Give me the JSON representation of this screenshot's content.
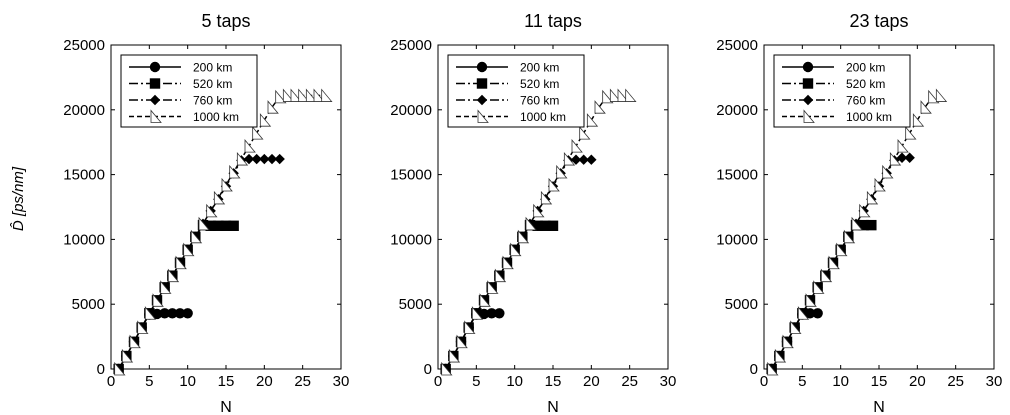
{
  "chart_data": [
    {
      "type": "scatter",
      "title": "5 taps",
      "xlabel": "N",
      "ylabel": "D̂ [ps/nm]",
      "xlim": [
        0,
        30
      ],
      "ylim": [
        0,
        25000
      ],
      "xticks": [
        "0",
        "5",
        "10",
        "15",
        "20",
        "25",
        "30"
      ],
      "yticks": [
        "0",
        "5000",
        "10000",
        "15000",
        "20000",
        "25000"
      ],
      "grid": false,
      "legend_position": "top-left",
      "series": [
        {
          "name": "200 km",
          "marker": "circle",
          "line": "solid",
          "x": [
            1,
            2,
            3,
            4,
            5,
            6,
            7,
            8,
            9,
            10
          ],
          "y": [
            0,
            1000,
            2100,
            3200,
            4200,
            4250,
            4300,
            4300,
            4300,
            4300
          ]
        },
        {
          "name": "520 km",
          "marker": "square",
          "line": "dashdot",
          "x": [
            1,
            2,
            3,
            4,
            5,
            6,
            7,
            8,
            9,
            10,
            11,
            12,
            13,
            14,
            15,
            16
          ],
          "y": [
            0,
            1000,
            2100,
            3200,
            4300,
            5300,
            6300,
            7200,
            8200,
            9200,
            10200,
            11100,
            11050,
            11050,
            11050,
            11050
          ]
        },
        {
          "name": "760 km",
          "marker": "diamond",
          "line": "dashdot",
          "x": [
            1,
            2,
            3,
            4,
            5,
            6,
            7,
            8,
            9,
            10,
            11,
            12,
            13,
            14,
            15,
            16,
            17,
            18,
            19,
            20,
            21,
            22
          ],
          "y": [
            0,
            1000,
            2100,
            3200,
            4300,
            5300,
            6300,
            7200,
            8200,
            9200,
            10200,
            11200,
            12200,
            13100,
            14100,
            15100,
            16100,
            16200,
            16200,
            16200,
            16200,
            16200
          ]
        },
        {
          "name": "1000 km",
          "marker": "triangle",
          "line": "dashed",
          "x": [
            1,
            2,
            3,
            4,
            5,
            6,
            7,
            8,
            9,
            10,
            11,
            12,
            13,
            14,
            15,
            16,
            17,
            18,
            19,
            20,
            21,
            22,
            23,
            24,
            25,
            26,
            27,
            28
          ],
          "y": [
            0,
            1000,
            2100,
            3200,
            4300,
            5300,
            6300,
            7200,
            8200,
            9200,
            10200,
            11200,
            12200,
            13200,
            14200,
            15200,
            16200,
            17200,
            18200,
            19200,
            20200,
            21000,
            21100,
            21100,
            21100,
            21100,
            21100,
            21100
          ]
        }
      ]
    },
    {
      "type": "scatter",
      "title": "11 taps",
      "xlabel": "N",
      "ylabel": "",
      "xlim": [
        0,
        30
      ],
      "ylim": [
        0,
        25000
      ],
      "xticks": [
        "0",
        "5",
        "10",
        "15",
        "20",
        "25",
        "30"
      ],
      "yticks": [
        "0",
        "5000",
        "10000",
        "15000",
        "20000",
        "25000"
      ],
      "grid": false,
      "legend_position": "top-left",
      "series": [
        {
          "name": "200 km",
          "marker": "circle",
          "line": "solid",
          "x": [
            1,
            2,
            3,
            4,
            5,
            6,
            7,
            8
          ],
          "y": [
            0,
            1000,
            2100,
            3200,
            4200,
            4250,
            4300,
            4300
          ]
        },
        {
          "name": "520 km",
          "marker": "square",
          "line": "dashdot",
          "x": [
            1,
            2,
            3,
            4,
            5,
            6,
            7,
            8,
            9,
            10,
            11,
            12,
            13,
            14,
            15
          ],
          "y": [
            0,
            1000,
            2100,
            3200,
            4300,
            5300,
            6300,
            7200,
            8200,
            9200,
            10200,
            11100,
            11050,
            11050,
            11050
          ]
        },
        {
          "name": "760 km",
          "marker": "diamond",
          "line": "dashdot",
          "x": [
            1,
            2,
            3,
            4,
            5,
            6,
            7,
            8,
            9,
            10,
            11,
            12,
            13,
            14,
            15,
            16,
            17,
            18,
            19,
            20
          ],
          "y": [
            0,
            1000,
            2100,
            3200,
            4300,
            5300,
            6300,
            7200,
            8200,
            9200,
            10200,
            11200,
            12200,
            13100,
            14100,
            15100,
            16100,
            16150,
            16150,
            16150
          ]
        },
        {
          "name": "1000 km",
          "marker": "triangle",
          "line": "dashed",
          "x": [
            1,
            2,
            3,
            4,
            5,
            6,
            7,
            8,
            9,
            10,
            11,
            12,
            13,
            14,
            15,
            16,
            17,
            18,
            19,
            20,
            21,
            22,
            23,
            24,
            25
          ],
          "y": [
            0,
            1000,
            2100,
            3200,
            4300,
            5300,
            6300,
            7200,
            8200,
            9200,
            10200,
            11200,
            12200,
            13200,
            14200,
            15200,
            16200,
            17200,
            18200,
            19200,
            20200,
            21000,
            21100,
            21100,
            21100
          ]
        }
      ]
    },
    {
      "type": "scatter",
      "title": "23 taps",
      "xlabel": "N",
      "ylabel": "",
      "xlim": [
        0,
        30
      ],
      "ylim": [
        0,
        25000
      ],
      "xticks": [
        "0",
        "5",
        "10",
        "15",
        "20",
        "25",
        "30"
      ],
      "yticks": [
        "0",
        "5000",
        "10000",
        "15000",
        "20000",
        "25000"
      ],
      "grid": false,
      "legend_position": "top-left",
      "series": [
        {
          "name": "200 km",
          "marker": "circle",
          "line": "solid",
          "x": [
            1,
            2,
            3,
            4,
            5,
            6,
            7
          ],
          "y": [
            0,
            1000,
            2100,
            3200,
            4200,
            4300,
            4300
          ]
        },
        {
          "name": "520 km",
          "marker": "square",
          "line": "dashdot",
          "x": [
            1,
            2,
            3,
            4,
            5,
            6,
            7,
            8,
            9,
            10,
            11,
            12,
            13,
            14
          ],
          "y": [
            0,
            1000,
            2100,
            3200,
            4300,
            5300,
            6300,
            7200,
            8200,
            9200,
            10200,
            11100,
            11100,
            11100
          ]
        },
        {
          "name": "760 km",
          "marker": "diamond",
          "line": "dashdot",
          "x": [
            1,
            2,
            3,
            4,
            5,
            6,
            7,
            8,
            9,
            10,
            11,
            12,
            13,
            14,
            15,
            16,
            17,
            18,
            19
          ],
          "y": [
            0,
            1000,
            2100,
            3200,
            4300,
            5300,
            6300,
            7200,
            8200,
            9200,
            10200,
            11200,
            12200,
            13100,
            14100,
            15100,
            16100,
            16300,
            16300
          ]
        },
        {
          "name": "1000 km",
          "marker": "triangle",
          "line": "dashed",
          "x": [
            1,
            2,
            3,
            4,
            5,
            6,
            7,
            8,
            9,
            10,
            11,
            12,
            13,
            14,
            15,
            16,
            17,
            18,
            19,
            20,
            21,
            22,
            23
          ],
          "y": [
            0,
            1000,
            2100,
            3200,
            4300,
            5300,
            6300,
            7200,
            8200,
            9200,
            10200,
            11200,
            12200,
            13200,
            14200,
            15200,
            16200,
            17200,
            18200,
            19200,
            20200,
            21000,
            21100
          ]
        }
      ]
    }
  ]
}
